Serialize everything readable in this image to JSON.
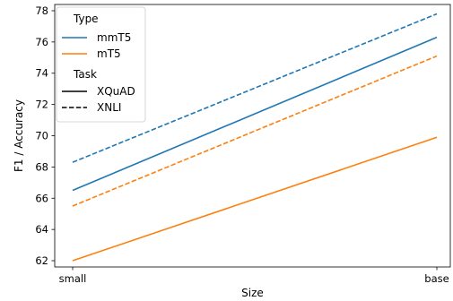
{
  "chart_data": {
    "type": "line",
    "categories": [
      "small",
      "base"
    ],
    "xlabel": "Size",
    "ylabel": "F1 / Accuracy",
    "ylim": [
      61.6,
      78.4
    ],
    "yticks": [
      62,
      64,
      66,
      68,
      70,
      72,
      74,
      76,
      78
    ],
    "grid": false,
    "legend": {
      "placement": "top-left",
      "hue_title": "Type",
      "hue_entries": [
        {
          "label": "mmT5",
          "color": "#1f77b4"
        },
        {
          "label": "mT5",
          "color": "#ff7f0e"
        }
      ],
      "style_title": "Task",
      "style_entries": [
        {
          "label": "XQuAD",
          "dash": "solid"
        },
        {
          "label": "XNLI",
          "dash": "dashed"
        }
      ]
    },
    "series": [
      {
        "type": "mmT5",
        "task": "XQuAD",
        "color": "#1f77b4",
        "dash": "solid",
        "values": [
          66.5,
          76.3
        ]
      },
      {
        "type": "mmT5",
        "task": "XNLI",
        "color": "#1f77b4",
        "dash": "dashed",
        "values": [
          68.3,
          77.8
        ]
      },
      {
        "type": "mT5",
        "task": "XQuAD",
        "color": "#ff7f0e",
        "dash": "solid",
        "values": [
          62.0,
          69.9
        ]
      },
      {
        "type": "mT5",
        "task": "XNLI",
        "color": "#ff7f0e",
        "dash": "dashed",
        "values": [
          65.5,
          75.1
        ]
      }
    ]
  }
}
